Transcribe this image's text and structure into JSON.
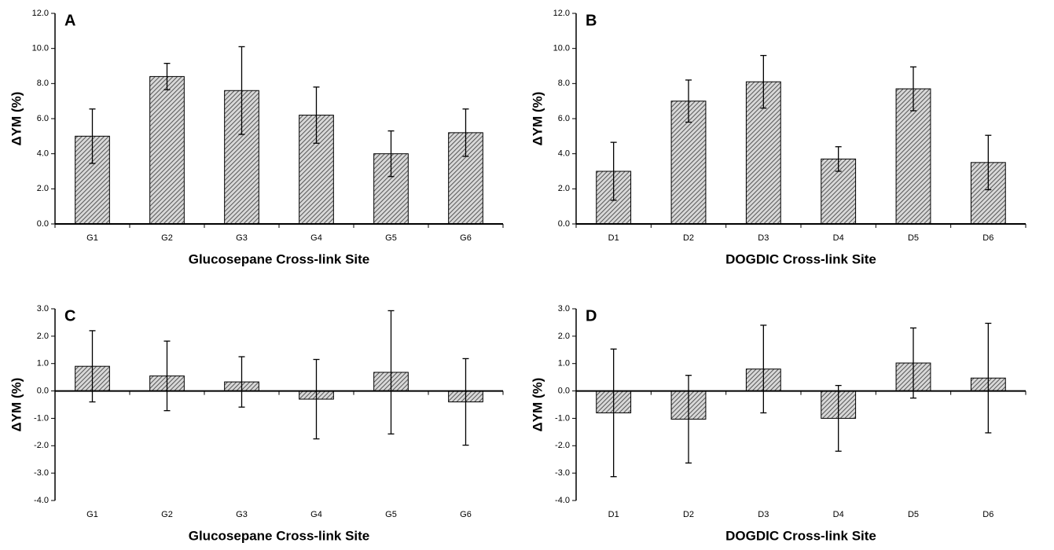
{
  "chart_data": [
    {
      "type": "bar",
      "panel_label": "A",
      "xlabel": "Glucosepane Cross-link Site",
      "ylabel": "ΔYM (%)",
      "categories": [
        "G1",
        "G2",
        "G3",
        "G4",
        "G5",
        "G6"
      ],
      "values": [
        5.0,
        8.4,
        7.6,
        6.2,
        4.0,
        5.2
      ],
      "errors": [
        1.55,
        0.75,
        2.5,
        1.6,
        1.3,
        1.35
      ],
      "color": "#555555",
      "ylim": [
        0,
        12
      ],
      "yticks": [
        {
          "value": 0,
          "label": "0.0"
        },
        {
          "value": 2,
          "label": "2.0"
        },
        {
          "value": 4,
          "label": "4.0"
        },
        {
          "value": 6,
          "label": "6.0"
        },
        {
          "value": 8,
          "label": "8.0"
        },
        {
          "value": 10,
          "label": "10.0"
        },
        {
          "value": 12,
          "label": "12.0"
        }
      ]
    },
    {
      "type": "bar",
      "panel_label": "B",
      "xlabel": "DOGDIC Cross-link Site",
      "ylabel": "ΔYM (%)",
      "categories": [
        "D1",
        "D2",
        "D3",
        "D4",
        "D5",
        "D6"
      ],
      "values": [
        3.0,
        7.0,
        8.1,
        3.7,
        7.7,
        3.5
      ],
      "errors": [
        1.65,
        1.2,
        1.5,
        0.7,
        1.25,
        1.55
      ],
      "color": "#555555",
      "ylim": [
        0,
        12
      ],
      "yticks": [
        {
          "value": 0,
          "label": "0.0"
        },
        {
          "value": 2,
          "label": "2.0"
        },
        {
          "value": 4,
          "label": "4.0"
        },
        {
          "value": 6,
          "label": "6.0"
        },
        {
          "value": 8,
          "label": "8.0"
        },
        {
          "value": 10,
          "label": "10.0"
        },
        {
          "value": 12,
          "label": "12.0"
        }
      ]
    },
    {
      "type": "bar",
      "panel_label": "C",
      "xlabel": "Glucosepane Cross-link Site",
      "ylabel": "ΔYM (%)",
      "categories": [
        "G1",
        "G2",
        "G3",
        "G4",
        "G5",
        "G6"
      ],
      "values": [
        0.9,
        0.55,
        0.33,
        -0.3,
        0.68,
        -0.4
      ],
      "errors": [
        1.3,
        1.27,
        0.92,
        1.45,
        2.25,
        1.58
      ],
      "color": "#555555",
      "ylim": [
        -4,
        3
      ],
      "yticks": [
        {
          "value": -4,
          "label": "-4.0"
        },
        {
          "value": -3,
          "label": "-3.0"
        },
        {
          "value": -2,
          "label": "-2.0"
        },
        {
          "value": -1,
          "label": "-1.0"
        },
        {
          "value": 0,
          "label": "0.0"
        },
        {
          "value": 1,
          "label": "1.0"
        },
        {
          "value": 2,
          "label": "2.0"
        },
        {
          "value": 3,
          "label": "3.0"
        }
      ]
    },
    {
      "type": "bar",
      "panel_label": "D",
      "xlabel": "DOGDIC Cross-link Site",
      "ylabel": "ΔYM (%)",
      "categories": [
        "D1",
        "D2",
        "D3",
        "D4",
        "D5",
        "D6"
      ],
      "values": [
        -0.8,
        -1.03,
        0.8,
        -1.0,
        1.02,
        0.47
      ],
      "errors": [
        2.33,
        1.6,
        1.6,
        1.2,
        1.28,
        2.0
      ],
      "color": "#555555",
      "ylim": [
        -4,
        3
      ],
      "yticks": [
        {
          "value": -4,
          "label": "-4.0"
        },
        {
          "value": -3,
          "label": "-3.0"
        },
        {
          "value": -2,
          "label": "-2.0"
        },
        {
          "value": -1,
          "label": "-1.0"
        },
        {
          "value": 0,
          "label": "0.0"
        },
        {
          "value": 1,
          "label": "1.0"
        },
        {
          "value": 2,
          "label": "2.0"
        },
        {
          "value": 3,
          "label": "3.0"
        }
      ]
    }
  ]
}
